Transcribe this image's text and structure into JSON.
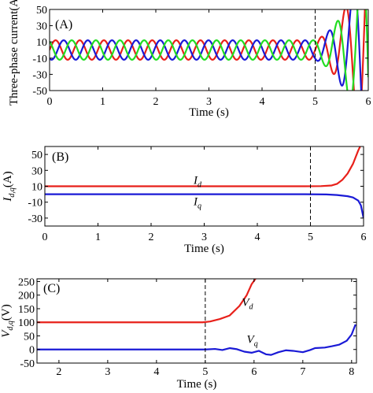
{
  "chart_data": [
    {
      "type": "line",
      "panel_label": "(A)",
      "xlabel": "Time (s)",
      "ylabel": "Three-phase current(A)",
      "xlim": [
        0,
        6
      ],
      "ylim": [
        -50,
        50
      ],
      "xticks": [
        0,
        1,
        2,
        3,
        4,
        5,
        6
      ],
      "yticks": [
        50,
        30,
        10,
        -10,
        -30,
        -50
      ],
      "event_time": 5,
      "grid": false,
      "series": [
        {
          "color": "#e8201a",
          "amplitude": 12,
          "phase_offset_deg": 0,
          "frequency_hz": 2.2,
          "growth_after_event": true
        },
        {
          "color": "#1a1ad6",
          "amplitude": 12,
          "phase_offset_deg": -120,
          "frequency_hz": 2.2,
          "growth_after_event": true
        },
        {
          "color": "#22dd22",
          "amplitude": 12,
          "phase_offset_deg": 120,
          "frequency_hz": 2.2,
          "growth_after_event": true
        }
      ]
    },
    {
      "type": "line",
      "panel_label": "(B)",
      "xlabel": "Time (s)",
      "ylabel": "I_{d,q}(A)",
      "ylabel_main": "I",
      "ylabel_sub": "d,q",
      "ylabel_unit": "(A)",
      "xlim": [
        0,
        6
      ],
      "ylim": [
        -40,
        60
      ],
      "xticks": [
        0,
        1,
        2,
        3,
        4,
        5,
        6
      ],
      "yticks": [
        50,
        30,
        10,
        -10,
        -30
      ],
      "event_time": 5,
      "grid": false,
      "series": [
        {
          "main": "I",
          "sub": "d",
          "color": "#e8201a",
          "points": [
            [
              0,
              10
            ],
            [
              4.9,
              10
            ],
            [
              5.2,
              10.2
            ],
            [
              5.4,
              11
            ],
            [
              5.5,
              13
            ],
            [
              5.6,
              18
            ],
            [
              5.7,
              26
            ],
            [
              5.8,
              38
            ],
            [
              5.9,
              55
            ],
            [
              5.95,
              62
            ]
          ],
          "label_at": [
            2.8,
            18
          ]
        },
        {
          "main": "I",
          "sub": "q",
          "color": "#1a1ad6",
          "points": [
            [
              0,
              0
            ],
            [
              4.9,
              0
            ],
            [
              5.3,
              -0.3
            ],
            [
              5.5,
              -1
            ],
            [
              5.7,
              -2.5
            ],
            [
              5.8,
              -4
            ],
            [
              5.9,
              -8
            ],
            [
              5.95,
              -14
            ],
            [
              6.0,
              -30
            ]
          ],
          "label_at": [
            2.8,
            -9
          ]
        }
      ]
    },
    {
      "type": "line",
      "panel_label": "(C)",
      "xlabel": "Time (s)",
      "ylabel": "V_{d,q}(V)",
      "ylabel_main": "V",
      "ylabel_sub": "d,q",
      "ylabel_unit": "(V)",
      "xlim": [
        1.55,
        8.1
      ],
      "ylim": [
        -50,
        260
      ],
      "xticks": [
        2,
        3,
        4,
        5,
        6,
        7,
        8
      ],
      "yticks": [
        250,
        200,
        150,
        100,
        50,
        0,
        -50
      ],
      "event_time": 5,
      "grid": false,
      "series": [
        {
          "main": "V",
          "sub": "d",
          "color": "#e8201a",
          "points": [
            [
              1.55,
              100
            ],
            [
              4.95,
              100
            ],
            [
              5.1,
              103
            ],
            [
              5.3,
              112
            ],
            [
              5.5,
              125
            ],
            [
              5.7,
              160
            ],
            [
              5.85,
              200
            ],
            [
              5.95,
              240
            ],
            [
              6.05,
              265
            ]
          ],
          "label_at": [
            5.75,
            175
          ]
        },
        {
          "main": "V",
          "sub": "q",
          "color": "#1a1ad6",
          "points": [
            [
              1.55,
              0
            ],
            [
              5.0,
              0
            ],
            [
              5.2,
              2
            ],
            [
              5.35,
              -2
            ],
            [
              5.5,
              5
            ],
            [
              5.65,
              1
            ],
            [
              5.8,
              -8
            ],
            [
              5.95,
              -12
            ],
            [
              6.1,
              -5
            ],
            [
              6.25,
              -18
            ],
            [
              6.35,
              -20
            ],
            [
              6.5,
              -10
            ],
            [
              6.65,
              -3
            ],
            [
              6.8,
              -5
            ],
            [
              7.0,
              -10
            ],
            [
              7.15,
              -2
            ],
            [
              7.25,
              5
            ],
            [
              7.45,
              7
            ],
            [
              7.6,
              12
            ],
            [
              7.75,
              18
            ],
            [
              7.9,
              32
            ],
            [
              8.0,
              55
            ],
            [
              8.08,
              92
            ]
          ],
          "label_at": [
            5.85,
            38
          ]
        }
      ]
    }
  ]
}
